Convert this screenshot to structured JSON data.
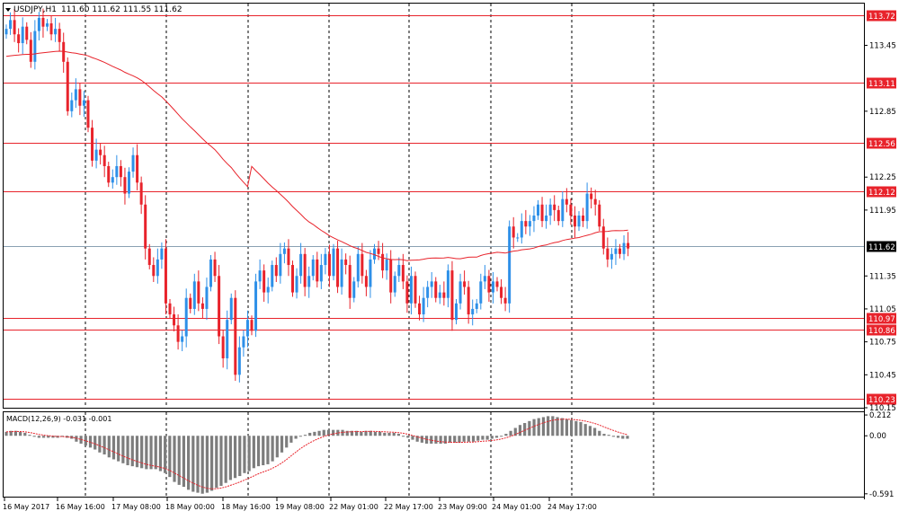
{
  "header": {
    "symbol_label": "USDJPY,H1",
    "ohlc_text": "111.60 111.62 111.55 111.62"
  },
  "macd": {
    "label": "MACD(12,26,9) -0.031 -0.001"
  },
  "colors": {
    "bull": "#2e90e8",
    "bear": "#e8232b",
    "level": "#e8232b",
    "current_price": "#8aa1b3",
    "grid": "#000000",
    "macd_hist": "#7d7d7d",
    "macd_signal": "#e8232b",
    "label_text_on_level": "#ffffff",
    "current_label_bg": "#000000"
  },
  "chart_data": [
    {
      "type": "candlestick",
      "title": "USDJPY,H1",
      "ylim": [
        110.15,
        113.83
      ],
      "y_ticks": [
        113.45,
        112.85,
        112.25,
        111.95,
        111.35,
        111.05,
        110.75,
        110.45,
        110.15
      ],
      "x_tick_labels": [
        "16 May 2017",
        "16 May 16:00",
        "17 May 08:00",
        "18 May 00:00",
        "18 May 16:00",
        "19 May 08:00",
        "22 May 01:00",
        "22 May 17:00",
        "23 May 09:00",
        "24 May 01:00",
        "24 May 17:00"
      ],
      "levels": [
        113.72,
        113.11,
        112.56,
        112.12,
        110.97,
        110.86,
        110.23
      ],
      "current_price": 111.62,
      "grid": "vertical-dashed",
      "close": [
        113.6,
        113.68,
        113.55,
        113.47,
        113.62,
        113.5,
        113.3,
        113.58,
        113.7,
        113.62,
        113.65,
        113.55,
        113.6,
        113.48,
        113.3,
        112.85,
        112.95,
        113.05,
        112.9,
        112.95,
        112.7,
        112.4,
        112.5,
        112.45,
        112.35,
        112.2,
        112.25,
        112.35,
        112.25,
        112.1,
        112.3,
        112.45,
        112.2,
        112.0,
        111.6,
        111.45,
        111.35,
        111.5,
        111.6,
        111.1,
        111.0,
        110.9,
        110.75,
        110.8,
        111.15,
        111.05,
        111.3,
        111.1,
        111.05,
        111.25,
        111.5,
        111.35,
        110.8,
        110.6,
        110.95,
        111.15,
        110.45,
        110.7,
        110.8,
        110.95,
        110.85,
        111.3,
        111.4,
        111.2,
        111.25,
        111.45,
        111.35,
        111.55,
        111.6,
        111.45,
        111.2,
        111.35,
        111.55,
        111.25,
        111.35,
        111.5,
        111.3,
        111.45,
        111.55,
        111.35,
        111.6,
        111.25,
        111.5,
        111.45,
        111.15,
        111.3,
        111.55,
        111.35,
        111.25,
        111.5,
        111.6,
        111.55,
        111.4,
        111.5,
        111.2,
        111.35,
        111.45,
        111.3,
        111.1,
        111.35,
        111.1,
        111.0,
        111.15,
        111.25,
        111.3,
        111.15,
        111.2,
        111.15,
        111.4,
        110.95,
        111.1,
        111.3,
        111.25,
        111.0,
        111.05,
        111.1,
        111.3,
        111.35,
        111.2,
        111.3,
        111.25,
        111.15,
        111.1,
        111.8,
        111.7,
        111.7,
        111.85,
        111.8,
        111.85,
        111.9,
        112.0,
        111.85,
        111.9,
        112.0,
        111.95,
        111.85,
        112.05,
        112.0,
        111.9,
        111.8,
        111.9,
        111.85,
        112.1,
        112.05,
        112.0,
        111.8,
        111.6,
        111.5,
        111.55,
        111.6,
        111.55,
        111.65,
        111.6
      ],
      "ohlc_series": "hourly candles, values in price units",
      "macd": {
        "title": "MACD(12,26,9)",
        "ylim": [
          -0.62,
          0.24
        ],
        "y_ticks": [
          0.212,
          0.0,
          -0.591
        ],
        "hist": [
          0.04,
          0.05,
          0.05,
          0.04,
          0.03,
          0.01,
          -0.01,
          -0.02,
          -0.02,
          -0.02,
          -0.02,
          -0.02,
          -0.01,
          -0.02,
          -0.03,
          -0.06,
          -0.08,
          -0.1,
          -0.12,
          -0.14,
          -0.17,
          -0.19,
          -0.22,
          -0.24,
          -0.26,
          -0.28,
          -0.3,
          -0.31,
          -0.32,
          -0.33,
          -0.34,
          -0.34,
          -0.34,
          -0.36,
          -0.38,
          -0.42,
          -0.47,
          -0.5,
          -0.52,
          -0.55,
          -0.57,
          -0.58,
          -0.59,
          -0.58,
          -0.56,
          -0.53,
          -0.51,
          -0.48,
          -0.45,
          -0.43,
          -0.41,
          -0.38,
          -0.36,
          -0.33,
          -0.31,
          -0.3,
          -0.29,
          -0.26,
          -0.22,
          -0.17,
          -0.12,
          -0.07,
          -0.03,
          0.0,
          0.01,
          0.03,
          0.04,
          0.05,
          0.06,
          0.06,
          0.06,
          0.06,
          0.06,
          0.05,
          0.05,
          0.05,
          0.04,
          0.05,
          0.05,
          0.04,
          0.04,
          0.03,
          0.03,
          0.03,
          0.02,
          0.0,
          -0.02,
          -0.04,
          -0.06,
          -0.07,
          -0.08,
          -0.08,
          -0.08,
          -0.08,
          -0.08,
          -0.07,
          -0.07,
          -0.07,
          -0.06,
          -0.06,
          -0.06,
          -0.05,
          -0.04,
          -0.04,
          -0.03,
          -0.02,
          0.0,
          0.02,
          0.05,
          0.08,
          0.11,
          0.13,
          0.15,
          0.17,
          0.18,
          0.19,
          0.2,
          0.2,
          0.19,
          0.18,
          0.17,
          0.16,
          0.15,
          0.14,
          0.12,
          0.1,
          0.08,
          0.05,
          0.02,
          0.01,
          -0.01,
          -0.02,
          -0.03,
          -0.03
        ]
      }
    }
  ]
}
